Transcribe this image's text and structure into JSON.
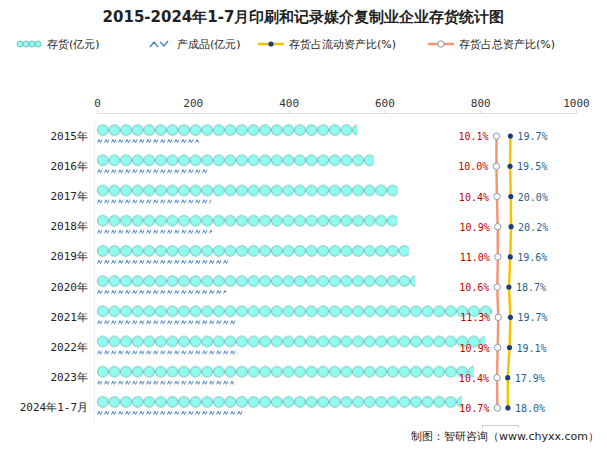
{
  "chart_data": {
    "type": "bar",
    "orientation": "horizontal",
    "title": "2015-2024年1-7月印刷和记录媒介复制业企业存货统计图",
    "annotations": [
      "制图：智研咨询（www.chyxx.com）"
    ],
    "legend": "top",
    "grid": false,
    "tick_labels": "x",
    "categories": [
      "2015年",
      "2016年",
      "2017年",
      "2018年",
      "2019年",
      "2020年",
      "2021年",
      "2022年",
      "2023年",
      "2024年1-7月"
    ],
    "xlim": [
      0,
      1000
    ],
    "xticks": [
      0,
      200,
      400,
      600,
      800,
      1000
    ],
    "y2lim": [
      0,
      25
    ],
    "y2ticks": [
      0,
      25
    ],
    "series": [
      {
        "name": "存货(亿元)",
        "color": "#72c4bc",
        "marker": "circle",
        "values": [
          543,
          578,
          628,
          627,
          651,
          664,
          825,
          810,
          787,
          762
        ]
      },
      {
        "name": "产成品(亿元)",
        "color": "#3f7fbf",
        "values": [
          213,
          234,
          238,
          240,
          273,
          269,
          292,
          294,
          286,
          305
        ]
      },
      {
        "name": "存货占流动资产比(%)",
        "type": "line",
        "axis": "y2",
        "color": "#f5c400",
        "marker": "circle",
        "data_labels": true,
        "values": [
          19.7,
          19.5,
          20.0,
          20.2,
          19.6,
          18.7,
          19.7,
          19.1,
          17.9,
          18.0
        ],
        "value_labels": [
          "19.7%",
          "19.5%",
          "20.0%",
          "20.2%",
          "19.6%",
          "18.7%",
          "19.7%",
          "19.1%",
          "17.9%",
          "18.0%"
        ]
      },
      {
        "name": "存货占总资产比(%)",
        "type": "line",
        "axis": "y2",
        "color": "#f0977a",
        "marker": "circle",
        "data_labels": true,
        "values": [
          10.1,
          10.0,
          10.4,
          10.9,
          11.0,
          10.6,
          11.3,
          10.9,
          10.4,
          10.7
        ],
        "value_labels": [
          "10.1%",
          "10.0%",
          "10.4%",
          "10.9%",
          "11.0%",
          "10.6%",
          "11.3%",
          "10.9%",
          "10.4%",
          "10.7%"
        ]
      }
    ]
  }
}
